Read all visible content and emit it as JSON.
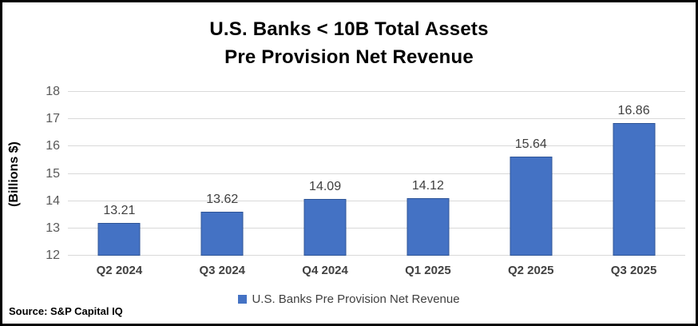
{
  "title": {
    "line1": "U.S. Banks < 10B Total Assets",
    "line2": "Pre Provision Net Revenue"
  },
  "source": "Source: S&P Capital IQ",
  "legend": {
    "label": "U.S. Banks Pre Provision Net Revenue",
    "marker": "blue-square"
  },
  "colors": {
    "bar_fill": "#4472C4",
    "bar_border": "#2F5597",
    "gridline": "#D9D9D9",
    "tick_text": "#595959",
    "data_label_text": "#404040",
    "frame_border": "#000000"
  },
  "chart_data": {
    "type": "bar",
    "title": "U.S. Banks < 10B Total Assets Pre Provision Net Revenue",
    "categories": [
      "Q2 2024",
      "Q3 2024",
      "Q4 2024",
      "Q1 2025",
      "Q2 2025",
      "Q3 2025"
    ],
    "values": [
      13.21,
      13.62,
      14.09,
      14.12,
      15.64,
      16.86
    ],
    "data_labels": [
      "13.21",
      "13.62",
      "14.09",
      "14.12",
      "15.64",
      "16.86"
    ],
    "series_name": "U.S. Banks Pre Provision Net Revenue",
    "xlabel": "",
    "ylabel": "(Billions $)",
    "ylim": [
      12,
      18
    ],
    "ytick_step": 1,
    "yticks": [
      12,
      13,
      14,
      15,
      16,
      17,
      18
    ],
    "grid": true,
    "legend_position": "bottom"
  }
}
